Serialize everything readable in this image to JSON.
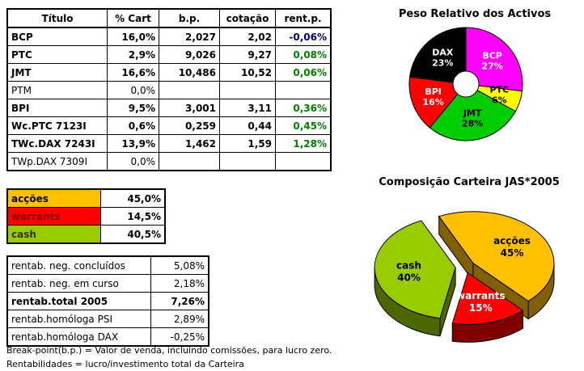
{
  "main_table": {
    "headers": [
      "Título",
      "% Cart",
      "b.p.",
      "cotação",
      "rent.p."
    ],
    "rows": [
      {
        "titulo": "BCP",
        "pcart": "16,0%",
        "bp": "2,027",
        "cotacao": "2,02",
        "rentp": "-0,06%",
        "rentp_color": "#000080",
        "bold": true
      },
      {
        "titulo": "PTC",
        "pcart": "2,9%",
        "bp": "9,026",
        "cotacao": "9,27",
        "rentp": "0,08%",
        "rentp_color": "#008000",
        "bold": true
      },
      {
        "titulo": "JMT",
        "pcart": "16,6%",
        "bp": "10,486",
        "cotacao": "10,52",
        "rentp": "0,06%",
        "rentp_color": "#008000",
        "bold": true
      },
      {
        "titulo": "PTM",
        "pcart": "0,0%",
        "bp": "",
        "cotacao": "",
        "rentp": "",
        "rentp_color": "#000000",
        "bold": false
      },
      {
        "titulo": "BPI",
        "pcart": "9,5%",
        "bp": "3,001",
        "cotacao": "3,11",
        "rentp": "0,36%",
        "rentp_color": "#008000",
        "bold": true
      },
      {
        "titulo": "Wc.PTC 7123I",
        "pcart": "0,6%",
        "bp": "0,259",
        "cotacao": "0,44",
        "rentp": "0,45%",
        "rentp_color": "#008000",
        "bold": true
      },
      {
        "titulo": "TWc.DAX 7243I",
        "pcart": "13,9%",
        "bp": "1,462",
        "cotacao": "1,59",
        "rentp": "1,28%",
        "rentp_color": "#008000",
        "bold": true
      },
      {
        "titulo": "TWp.DAX 7309I",
        "pcart": "0,0%",
        "bp": "",
        "cotacao": "",
        "rentp": "",
        "rentp_color": "#000000",
        "bold": false
      }
    ]
  },
  "allocation_table": {
    "rows": [
      {
        "label": "acções",
        "value": "45,0%",
        "bg": "#FFC000",
        "fg": "#000000"
      },
      {
        "label": "warrants",
        "value": "14,5%",
        "bg": "#FF0000",
        "fg": "#7F0000"
      },
      {
        "label": "cash",
        "value": "40,5%",
        "bg": "#99CC00",
        "fg": "#333300"
      }
    ]
  },
  "rentab_table": {
    "rows": [
      {
        "label": "rentab. neg. concluídos",
        "value": "5,08%",
        "bold": false
      },
      {
        "label": "rentab. neg. em curso",
        "value": "2,18%",
        "bold": false
      },
      {
        "label": "rentab.total 2005",
        "value": "7,26%",
        "bold": true
      },
      {
        "label": "rentab.homóloga PSI",
        "value": "2,89%",
        "bold": false
      },
      {
        "label": "rentab.homóloga DAX",
        "value": "-0,25%",
        "bold": false
      }
    ]
  },
  "footnotes": [
    "Break-point(b.p.) = Valor de venda, incluindo comissões, para lucro zero.",
    "Rentabilidades = lucro/investimento total da Carteira"
  ],
  "chart_data": [
    {
      "type": "pie",
      "subtype": "donut",
      "title": "Peso Relativo dos Activos",
      "start_angle": -90,
      "label_position": "inside",
      "legend": "none",
      "slices": [
        {
          "label": "BCP",
          "value": 27,
          "color": "#FF00FF",
          "label_color": "#FFFFFF"
        },
        {
          "label": "PTC",
          "value": 6,
          "color": "#FFFF00",
          "label_color": "#000000"
        },
        {
          "label": "JMT",
          "value": 28,
          "color": "#00CC00",
          "label_color": "#000000"
        },
        {
          "label": "BPI",
          "value": 16,
          "color": "#FF0000",
          "label_color": "#FFFFFF"
        },
        {
          "label": "DAX",
          "value": 23,
          "color": "#000000",
          "label_color": "#FFFFFF"
        }
      ]
    },
    {
      "type": "pie",
      "subtype": "3d-exploded",
      "title": "Composição Carteira JAS*2005",
      "start_angle": -115,
      "label_position": "inside",
      "legend": "none",
      "slices": [
        {
          "label": "acções",
          "value": 45,
          "color": "#FFC000",
          "side_color": "#806000",
          "label_color": "#000000"
        },
        {
          "label": "warrants",
          "value": 15,
          "color": "#FF0000",
          "side_color": "#800000",
          "label_color": "#FFFFFF"
        },
        {
          "label": "cash",
          "value": 40,
          "color": "#99CC00",
          "side_color": "#4C6600",
          "label_color": "#000000"
        }
      ]
    }
  ]
}
